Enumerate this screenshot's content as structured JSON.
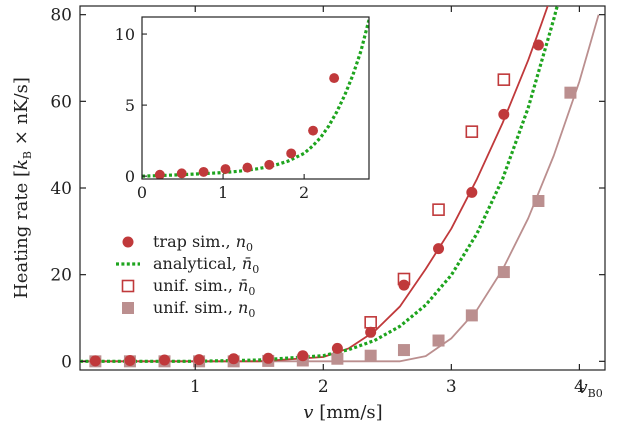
{
  "chart_data": [
    {
      "type": "line",
      "title": "",
      "xlabel": "v [mm/s]",
      "ylabel": "Heating rate [k_B × nK/s]",
      "xlim": [
        0.1,
        4.2
      ],
      "ylim": [
        -2,
        82
      ],
      "x_ticks": [
        1,
        2,
        3,
        4
      ],
      "y_ticks": [
        0,
        20,
        40,
        60,
        80
      ],
      "x_tick_labels": [
        "1",
        "2",
        "3",
        "4"
      ],
      "y_tick_labels": [
        "0",
        "20",
        "40",
        "60",
        "80"
      ],
      "extra_x_label": "v_B0",
      "grid": false,
      "legend_placement": "center-left",
      "colors": {
        "trap": "#c0393b",
        "analytical": "#1ea41e",
        "unif": "#bb8f8f"
      },
      "legend": [
        {
          "series": "trap",
          "label": "trap sim., n_0"
        },
        {
          "series": "analytical",
          "label": "analytical, n̄_0"
        },
        {
          "series": "unif_open",
          "label": "unif. sim., n̄_0"
        },
        {
          "series": "unif_filled",
          "label": "unif. sim., n_0"
        }
      ],
      "series": [
        {
          "id": "trap",
          "name": "trap sim., n_0",
          "marker": "circle-filled",
          "x": [
            0.22,
            0.49,
            0.76,
            1.03,
            1.3,
            1.57,
            1.84,
            2.11,
            2.37,
            2.63,
            2.9,
            3.16,
            3.41,
            3.68
          ],
          "y": [
            0.1,
            0.2,
            0.3,
            0.4,
            0.6,
            0.7,
            1.3,
            3.0,
            6.7,
            17.6,
            26.0,
            39.0,
            57.0,
            73.0
          ]
        },
        {
          "id": "unif_open",
          "name": "unif. sim., n̄_0",
          "marker": "square-open",
          "x": [
            2.37,
            2.63,
            2.9,
            3.16,
            3.41
          ],
          "y": [
            9.0,
            19.0,
            35.0,
            53.0,
            65.0
          ]
        },
        {
          "id": "unif_filled",
          "name": "unif. sim., n_0",
          "marker": "square-filled",
          "x": [
            0.22,
            0.49,
            0.76,
            1.03,
            1.3,
            1.57,
            1.84,
            2.11,
            2.37,
            2.63,
            2.9,
            3.16,
            3.41,
            3.68,
            3.93
          ],
          "y": [
            0.0,
            0.0,
            0.0,
            0.0,
            0.0,
            0.1,
            0.2,
            0.6,
            1.3,
            2.6,
            4.8,
            10.6,
            20.6,
            37.0,
            62.0
          ]
        },
        {
          "id": "trap_fit",
          "name": "",
          "style": "solid",
          "curve": "trap",
          "x": [
            0.1,
            1.0,
            1.5,
            2.0,
            2.2,
            2.4,
            2.6,
            2.8,
            3.0,
            3.2,
            3.4,
            3.6,
            3.7,
            3.8
          ],
          "y": [
            0.0,
            0.0,
            0.0,
            1.0,
            3.0,
            6.9,
            12.7,
            21.3,
            30.6,
            42.1,
            55.0,
            69.5,
            77.6,
            86.0
          ]
        },
        {
          "id": "analytical",
          "name": "analytical, n̄_0",
          "style": "dotted",
          "curve": "analytical",
          "x": [
            0.1,
            1.0,
            1.5,
            2.0,
            2.2,
            2.4,
            2.6,
            2.8,
            3.0,
            3.2,
            3.4,
            3.6,
            3.8,
            3.95
          ],
          "y": [
            0.0,
            0.0,
            0.3,
            1.3,
            2.7,
            4.8,
            8.1,
            13.0,
            19.9,
            29.5,
            42.1,
            58.5,
            79.0,
            96.0
          ]
        },
        {
          "id": "unif_fit",
          "name": "",
          "style": "solid",
          "curve": "unif",
          "x": [
            0.1,
            2.6,
            2.8,
            3.0,
            3.2,
            3.4,
            3.6,
            3.8,
            4.0,
            4.15
          ],
          "y": [
            0.0,
            0.0,
            1.2,
            5.3,
            11.9,
            21.2,
            33.0,
            47.5,
            64.6,
            80.0
          ]
        }
      ]
    },
    {
      "type": "line",
      "title": "",
      "xlabel": "",
      "ylabel": "",
      "xlim": [
        0,
        2.8
      ],
      "ylim": [
        -0.2,
        11.2
      ],
      "x_ticks": [
        0,
        1,
        2
      ],
      "y_ticks": [
        0,
        5,
        10
      ],
      "x_tick_labels": [
        "0",
        "1",
        "2"
      ],
      "y_tick_labels": [
        "0",
        "5",
        "10"
      ],
      "grid": false,
      "series": [
        {
          "id": "inset_trap",
          "name": "",
          "marker": "circle-filled",
          "x": [
            0.22,
            0.49,
            0.76,
            1.03,
            1.3,
            1.57,
            1.84,
            2.11,
            2.37
          ],
          "y": [
            0.1,
            0.2,
            0.3,
            0.5,
            0.6,
            0.8,
            1.6,
            3.2,
            6.9
          ]
        },
        {
          "id": "inset_analytical",
          "name": "",
          "style": "dotted",
          "curve": "analytical",
          "x": [
            0.0,
            0.5,
            1.0,
            1.2,
            1.4,
            1.6,
            1.8,
            2.0,
            2.1,
            2.2,
            2.3,
            2.4,
            2.5,
            2.6,
            2.7,
            2.8
          ],
          "y": [
            0.0,
            0.1,
            0.25,
            0.35,
            0.5,
            0.7,
            1.05,
            1.6,
            2.1,
            2.7,
            3.5,
            4.5,
            5.7,
            7.1,
            8.8,
            11.0
          ]
        }
      ]
    }
  ]
}
